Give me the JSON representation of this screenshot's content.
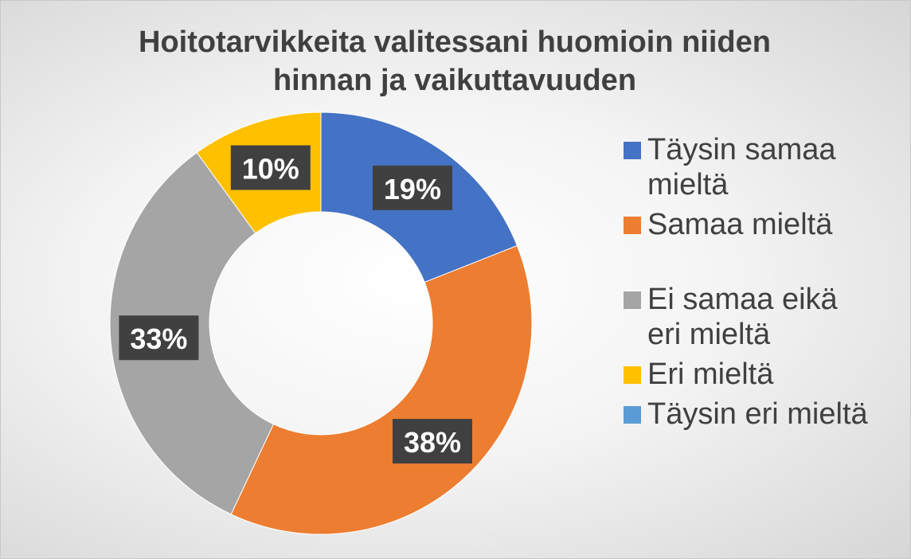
{
  "chart_data": {
    "type": "donut",
    "title": "Hoitotarvikkeita valitessani huomioin niiden hinnan ja vaikuttavuuden",
    "categories": [
      "Täysin samaa mieltä",
      "Samaa mieltä",
      "Ei samaa eikä eri mieltä",
      "Eri mieltä",
      "Täysin eri mieltä"
    ],
    "values": [
      19,
      38,
      33,
      10,
      0
    ],
    "value_labels": [
      "19%",
      "38%",
      "33%",
      "10%",
      null
    ],
    "colors": [
      "#4472c4",
      "#ed7d31",
      "#a5a5a5",
      "#ffc000",
      "#5b9bd5"
    ],
    "legend": "right"
  }
}
